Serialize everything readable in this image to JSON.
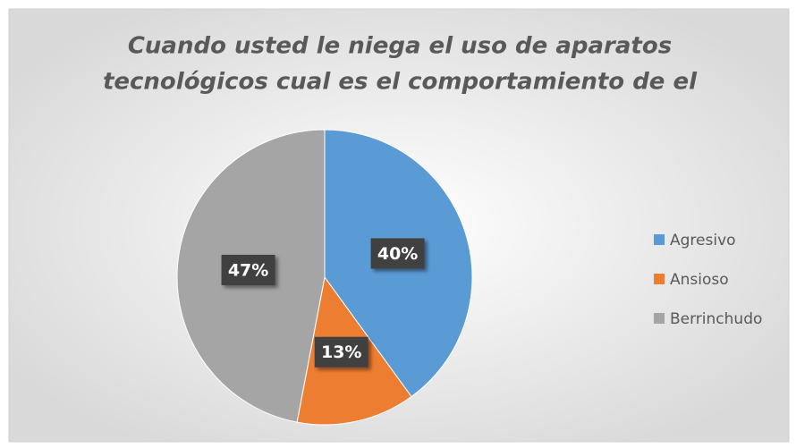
{
  "chart_data": {
    "type": "pie",
    "title": [
      "Cuando usted le niega el uso de aparatos",
      "tecnológicos  cual es el comportamiento de el"
    ],
    "categories": [
      "Agresivo",
      "Ansioso",
      "Berrinchudo"
    ],
    "values": [
      40,
      13,
      47
    ],
    "value_labels": [
      "40%",
      "13%",
      "47%"
    ],
    "colors": [
      "#5b9bd5",
      "#ed7d31",
      "#a5a5a5"
    ],
    "legend": "right"
  }
}
